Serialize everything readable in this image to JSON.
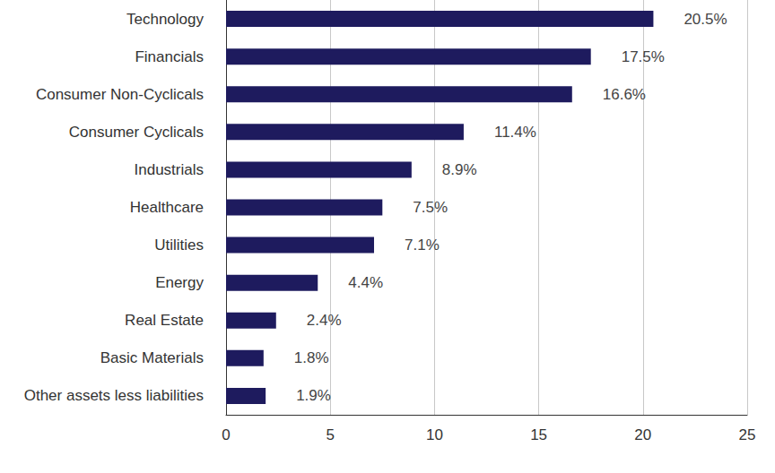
{
  "chart_data": {
    "type": "bar",
    "orientation": "horizontal",
    "categories": [
      "Technology",
      "Financials",
      "Consumer Non-Cyclicals",
      "Consumer Cyclicals",
      "Industrials",
      "Healthcare",
      "Utilities",
      "Energy",
      "Real Estate",
      "Basic Materials",
      "Other assets less liabilities"
    ],
    "values": [
      20.5,
      17.5,
      16.6,
      11.4,
      8.9,
      7.5,
      7.1,
      4.4,
      2.4,
      1.8,
      1.9
    ],
    "value_labels": [
      "20.5%",
      "17.5%",
      "16.6%",
      "11.4%",
      "8.9%",
      "7.5%",
      "7.1%",
      "4.4%",
      "2.4%",
      "1.8%",
      "1.9%"
    ],
    "color": "#1e1b5e",
    "xlim": [
      0,
      25
    ],
    "xticks": [
      0,
      5,
      10,
      15,
      20,
      25
    ],
    "grid": true,
    "data_labels": true
  }
}
